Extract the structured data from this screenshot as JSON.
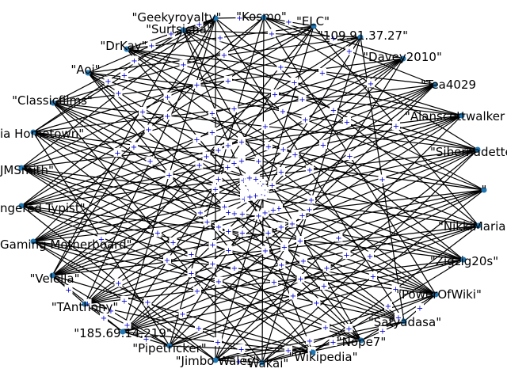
{
  "colors": {
    "node": "#1f77b4",
    "edge": "#000000",
    "edge_label": "#0000cc",
    "background": "#ffffff"
  },
  "edge_label_glyph": "+",
  "nodes": [
    {
      "id": "n0",
      "label": "\"Geekyroyalty\""
    },
    {
      "id": "n1",
      "label": "\"Kosmo\""
    },
    {
      "id": "n2",
      "label": "\"Surtsicna\""
    },
    {
      "id": "n3",
      "label": "\"ELC\""
    },
    {
      "id": "n4",
      "label": "\"109.91.37.27\""
    },
    {
      "id": "n5",
      "label": "\"DrKay\""
    },
    {
      "id": "n6",
      "label": "\"Davey2010\""
    },
    {
      "id": "n7",
      "label": "\"Aoi\""
    },
    {
      "id": "n8",
      "label": "\"Tea4029"
    },
    {
      "id": "n9",
      "label": "\"Classicfilms\""
    },
    {
      "id": "n10",
      "label": "\"Alanscottwalker"
    },
    {
      "id": "n11",
      "label": "ia Hometown\""
    },
    {
      "id": "n12",
      "label": "\"Sibernadette"
    },
    {
      "id": "n13",
      "label": "JMSmith\""
    },
    {
      "id": "n14",
      "label": "\""
    },
    {
      "id": "n15",
      "label": "ngered Typist\""
    },
    {
      "id": "n16",
      "label": "\"NikkiMaria"
    },
    {
      "id": "n17",
      "label": "Gaming Motherboard\""
    },
    {
      "id": "n18",
      "label": "\"Zigzig20s\""
    },
    {
      "id": "n19",
      "label": "\"Velella\""
    },
    {
      "id": "n20",
      "label": "\"PowerOfWiki\""
    },
    {
      "id": "n21",
      "label": "\"TAnthony\""
    },
    {
      "id": "n22",
      "label": "\"Satyadasa\""
    },
    {
      "id": "n23",
      "label": "\"185.69.14.219\""
    },
    {
      "id": "n24",
      "label": "\"Nope7\""
    },
    {
      "id": "n25",
      "label": "\"Pipetricker\""
    },
    {
      "id": "n26",
      "label": "\"Jimbo Wales\""
    },
    {
      "id": "n27",
      "label": "\"Wikipedia\""
    },
    {
      "id": "n28",
      "label": "\"Wakai\""
    }
  ],
  "edges": [
    [
      "n0",
      "n1"
    ],
    [
      "n0",
      "n2"
    ],
    [
      "n0",
      "n5"
    ],
    [
      "n0",
      "n7"
    ],
    [
      "n0",
      "n9"
    ],
    [
      "n0",
      "n11"
    ],
    [
      "n0",
      "n13"
    ],
    [
      "n0",
      "n19"
    ],
    [
      "n0",
      "n21"
    ],
    [
      "n0",
      "n23"
    ],
    [
      "n0",
      "n26"
    ],
    [
      "n0",
      "n22"
    ],
    [
      "n0",
      "n16"
    ],
    [
      "n1",
      "n3"
    ],
    [
      "n1",
      "n6"
    ],
    [
      "n1",
      "n8"
    ],
    [
      "n1",
      "n12"
    ],
    [
      "n1",
      "n17"
    ],
    [
      "n1",
      "n20"
    ],
    [
      "n1",
      "n25"
    ],
    [
      "n1",
      "n28"
    ],
    [
      "n1",
      "n15"
    ],
    [
      "n2",
      "n4"
    ],
    [
      "n2",
      "n10"
    ],
    [
      "n2",
      "n14"
    ],
    [
      "n2",
      "n18"
    ],
    [
      "n2",
      "n24"
    ],
    [
      "n2",
      "n27"
    ],
    [
      "n2",
      "n11"
    ],
    [
      "n2",
      "n19"
    ],
    [
      "n3",
      "n5"
    ],
    [
      "n3",
      "n9"
    ],
    [
      "n3",
      "n13"
    ],
    [
      "n3",
      "n16"
    ],
    [
      "n3",
      "n21"
    ],
    [
      "n3",
      "n23"
    ],
    [
      "n3",
      "n26"
    ],
    [
      "n3",
      "n15"
    ],
    [
      "n4",
      "n7"
    ],
    [
      "n4",
      "n11"
    ],
    [
      "n4",
      "n17"
    ],
    [
      "n4",
      "n19"
    ],
    [
      "n4",
      "n25"
    ],
    [
      "n4",
      "n28"
    ],
    [
      "n4",
      "n22"
    ],
    [
      "n5",
      "n8"
    ],
    [
      "n5",
      "n10"
    ],
    [
      "n5",
      "n12"
    ],
    [
      "n5",
      "n14"
    ],
    [
      "n5",
      "n18"
    ],
    [
      "n5",
      "n24"
    ],
    [
      "n5",
      "n20"
    ],
    [
      "n6",
      "n9"
    ],
    [
      "n6",
      "n13"
    ],
    [
      "n6",
      "n15"
    ],
    [
      "n6",
      "n19"
    ],
    [
      "n6",
      "n21"
    ],
    [
      "n6",
      "n23"
    ],
    [
      "n6",
      "n26"
    ],
    [
      "n6",
      "n17"
    ],
    [
      "n7",
      "n10"
    ],
    [
      "n7",
      "n12"
    ],
    [
      "n7",
      "n16"
    ],
    [
      "n7",
      "n20"
    ],
    [
      "n7",
      "n22"
    ],
    [
      "n7",
      "n27"
    ],
    [
      "n7",
      "n24"
    ],
    [
      "n8",
      "n11"
    ],
    [
      "n8",
      "n15"
    ],
    [
      "n8",
      "n17"
    ],
    [
      "n8",
      "n19"
    ],
    [
      "n8",
      "n21"
    ],
    [
      "n8",
      "n25"
    ],
    [
      "n8",
      "n23"
    ],
    [
      "n9",
      "n12"
    ],
    [
      "n9",
      "n14"
    ],
    [
      "n9",
      "n18"
    ],
    [
      "n9",
      "n20"
    ],
    [
      "n9",
      "n24"
    ],
    [
      "n9",
      "n28"
    ],
    [
      "n9",
      "n22"
    ],
    [
      "n10",
      "n13"
    ],
    [
      "n10",
      "n17"
    ],
    [
      "n10",
      "n19"
    ],
    [
      "n10",
      "n21"
    ],
    [
      "n10",
      "n23"
    ],
    [
      "n10",
      "n26"
    ],
    [
      "n10",
      "n15"
    ],
    [
      "n11",
      "n14"
    ],
    [
      "n11",
      "n16"
    ],
    [
      "n11",
      "n18"
    ],
    [
      "n11",
      "n22"
    ],
    [
      "n11",
      "n25"
    ],
    [
      "n11",
      "n27"
    ],
    [
      "n11",
      "n20"
    ],
    [
      "n12",
      "n15"
    ],
    [
      "n12",
      "n17"
    ],
    [
      "n12",
      "n19"
    ],
    [
      "n12",
      "n21"
    ],
    [
      "n12",
      "n23"
    ],
    [
      "n12",
      "n26"
    ],
    [
      "n12",
      "n28"
    ],
    [
      "n13",
      "n16"
    ],
    [
      "n13",
      "n18"
    ],
    [
      "n13",
      "n20"
    ],
    [
      "n13",
      "n24"
    ],
    [
      "n13",
      "n27"
    ],
    [
      "n13",
      "n22"
    ],
    [
      "n14",
      "n17"
    ],
    [
      "n14",
      "n19"
    ],
    [
      "n14",
      "n21"
    ],
    [
      "n14",
      "n23"
    ],
    [
      "n14",
      "n25"
    ],
    [
      "n14",
      "n28"
    ],
    [
      "n15",
      "n18"
    ],
    [
      "n15",
      "n20"
    ],
    [
      "n15",
      "n22"
    ],
    [
      "n15",
      "n24"
    ],
    [
      "n15",
      "n26"
    ],
    [
      "n16",
      "n19"
    ],
    [
      "n16",
      "n21"
    ],
    [
      "n16",
      "n23"
    ],
    [
      "n16",
      "n25"
    ],
    [
      "n16",
      "n27"
    ],
    [
      "n17",
      "n20"
    ],
    [
      "n17",
      "n22"
    ],
    [
      "n17",
      "n24"
    ],
    [
      "n17",
      "n26"
    ],
    [
      "n17",
      "n28"
    ],
    [
      "n18",
      "n21"
    ],
    [
      "n18",
      "n23"
    ],
    [
      "n18",
      "n25"
    ],
    [
      "n18",
      "n27"
    ],
    [
      "n19",
      "n21"
    ],
    [
      "n19",
      "n23"
    ],
    [
      "n19",
      "n25"
    ],
    [
      "n19",
      "n27"
    ],
    [
      "n20",
      "n22"
    ],
    [
      "n20",
      "n24"
    ],
    [
      "n20",
      "n26"
    ],
    [
      "n20",
      "n28"
    ],
    [
      "n21",
      "n23"
    ],
    [
      "n21",
      "n25"
    ],
    [
      "n21",
      "n27"
    ],
    [
      "n22",
      "n24"
    ],
    [
      "n22",
      "n26"
    ],
    [
      "n22",
      "n28"
    ],
    [
      "n23",
      "n25"
    ],
    [
      "n23",
      "n27"
    ],
    [
      "n24",
      "n26"
    ],
    [
      "n24",
      "n28"
    ],
    [
      "n25",
      "n27"
    ],
    [
      "n26",
      "n28"
    ]
  ]
}
